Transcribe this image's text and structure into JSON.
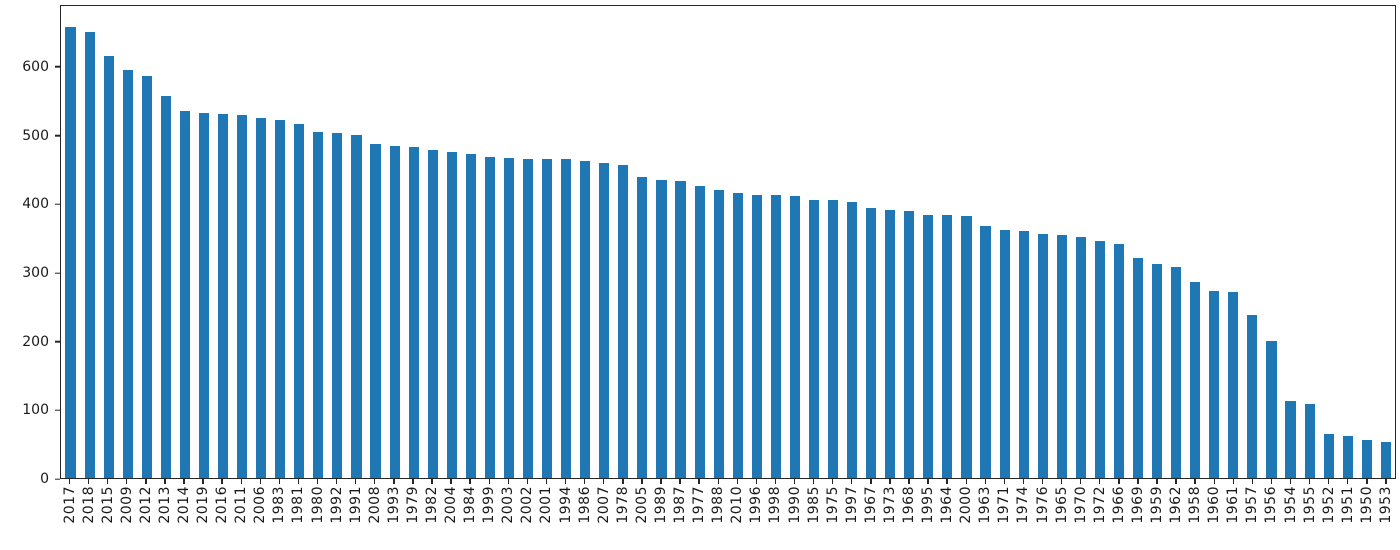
{
  "chart_data": {
    "type": "bar",
    "title": "",
    "xlabel": "",
    "ylabel": "",
    "grid": false,
    "legend": null,
    "bar_color": "#1f77b4",
    "axis_color": "#262626",
    "ylim": [
      0,
      690
    ],
    "yticks": [
      0,
      100,
      200,
      300,
      400,
      500,
      600
    ],
    "x_tick_rotation": 90,
    "sort_order": "descending-by-value",
    "categories": [
      "2017",
      "2018",
      "2015",
      "2009",
      "2012",
      "2013",
      "2014",
      "2019",
      "2016",
      "2011",
      "2006",
      "1983",
      "1981",
      "1980",
      "1992",
      "1991",
      "2008",
      "1993",
      "1979",
      "1982",
      "2004",
      "1984",
      "1999",
      "2003",
      "2002",
      "2001",
      "1994",
      "1986",
      "2007",
      "1978",
      "2005",
      "1989",
      "1987",
      "1977",
      "1988",
      "2010",
      "1996",
      "1998",
      "1990",
      "1985",
      "1975",
      "1997",
      "1967",
      "1973",
      "1968",
      "1995",
      "1964",
      "2000",
      "1963",
      "1971",
      "1974",
      "1976",
      "1965",
      "1970",
      "1972",
      "1966",
      "1969",
      "1959",
      "1962",
      "1958",
      "1960",
      "1961",
      "1957",
      "1956",
      "1954",
      "1955",
      "1952",
      "1951",
      "1950",
      "1953"
    ],
    "values": [
      659,
      652,
      617,
      596,
      588,
      558,
      537,
      533,
      532,
      530,
      526,
      524,
      518,
      506,
      504,
      501,
      488,
      485,
      484,
      479,
      477,
      473,
      469,
      468,
      467,
      466,
      466,
      463,
      461,
      457,
      440,
      435,
      434,
      427,
      421,
      416,
      413,
      413,
      412,
      407,
      406,
      404,
      395,
      392,
      390,
      385,
      384,
      383,
      369,
      363,
      361,
      356,
      355,
      352,
      347,
      342,
      321,
      313,
      309,
      286,
      274,
      272,
      239,
      201,
      112,
      108,
      64,
      61,
      56,
      52
    ]
  }
}
